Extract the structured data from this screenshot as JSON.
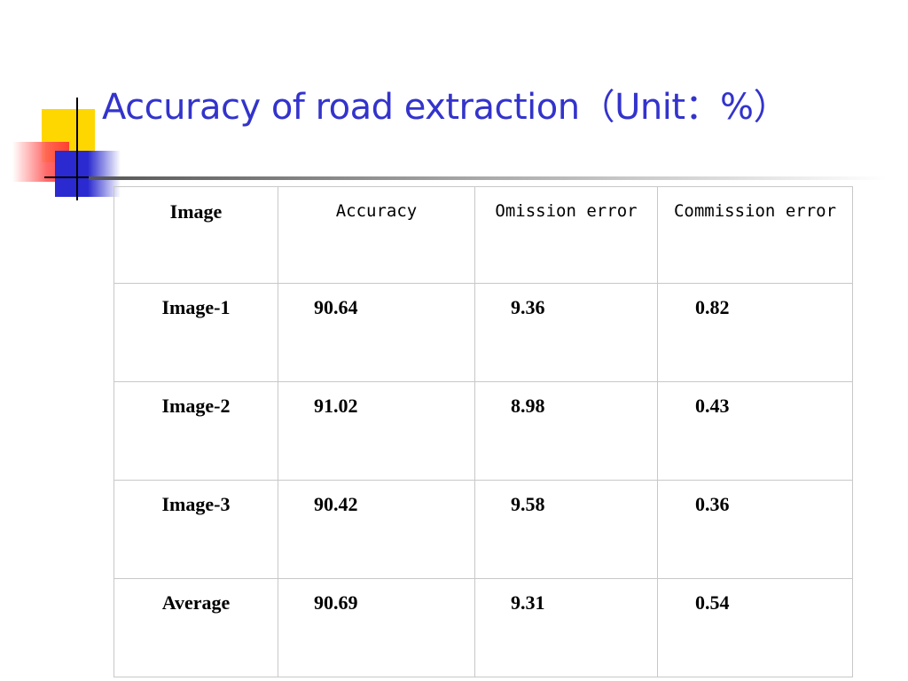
{
  "title": "Accuracy of road extraction（Unit：%）",
  "table": {
    "header": [
      "Image",
      "Accuracy",
      "Omission error",
      "Commission error"
    ],
    "rows": [
      [
        "Image-1",
        "90.64",
        "9.36",
        "0.82"
      ],
      [
        "Image-2",
        "91.02",
        "8.98",
        "0.43"
      ],
      [
        "Image-3",
        "90.42",
        "9.58",
        "0.36"
      ],
      [
        "Average",
        "90.69",
        "9.31",
        "0.54"
      ]
    ]
  }
}
